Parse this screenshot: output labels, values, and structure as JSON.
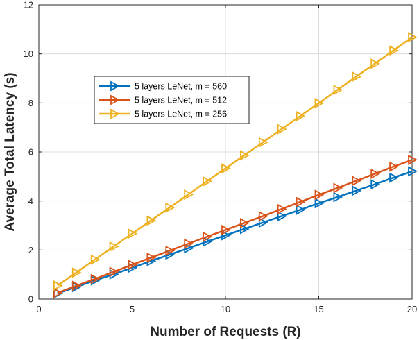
{
  "chart_data": {
    "type": "line",
    "title": "",
    "xlabel": "Number of Requests (R)",
    "ylabel": "Average Total Latency (s)",
    "xlim": [
      0,
      20
    ],
    "ylim": [
      0,
      12
    ],
    "xticks": [
      0,
      5,
      10,
      15,
      20
    ],
    "yticks": [
      0,
      2,
      4,
      6,
      8,
      10,
      12
    ],
    "grid": true,
    "legend_position": "upper-left-inside",
    "marker": "right-triangle",
    "x": [
      1,
      2,
      3,
      4,
      5,
      6,
      7,
      8,
      9,
      10,
      11,
      12,
      13,
      14,
      15,
      16,
      17,
      18,
      19,
      20
    ],
    "series": [
      {
        "name": "5 layers LeNet, m = 560",
        "color": "#0072BD",
        "values": [
          0.23,
          0.49,
          0.76,
          1.01,
          1.28,
          1.55,
          1.81,
          2.07,
          2.34,
          2.6,
          2.86,
          3.12,
          3.38,
          3.64,
          3.91,
          4.16,
          4.42,
          4.68,
          4.95,
          5.21
        ]
      },
      {
        "name": "5 layers LeNet, m = 512",
        "color": "#D95319",
        "values": [
          0.25,
          0.54,
          0.82,
          1.11,
          1.4,
          1.69,
          1.97,
          2.26,
          2.54,
          2.82,
          3.1,
          3.38,
          3.67,
          3.96,
          4.25,
          4.53,
          4.82,
          5.11,
          5.4,
          5.68
        ]
      },
      {
        "name": "5 layers LeNet, m = 256",
        "color": "#EDB120",
        "values": [
          0.55,
          1.08,
          1.61,
          2.14,
          2.67,
          3.2,
          3.73,
          4.26,
          4.8,
          5.33,
          5.86,
          6.39,
          6.93,
          7.46,
          7.99,
          8.53,
          9.07,
          9.6,
          10.14,
          10.68
        ]
      }
    ]
  }
}
